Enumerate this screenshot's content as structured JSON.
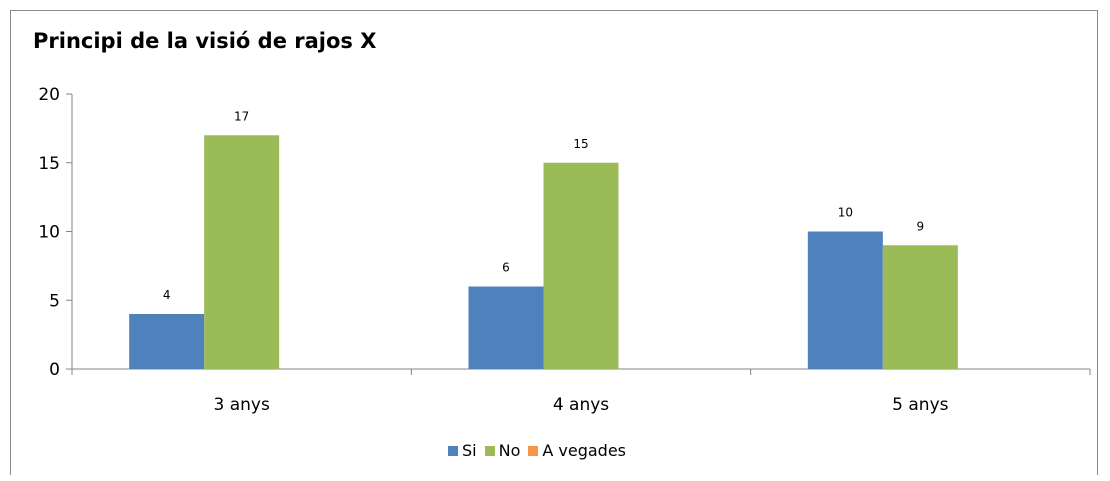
{
  "chart_data": {
    "type": "bar",
    "title": "Principi de la visió de rajos X",
    "categories": [
      "3 anys",
      "4 anys",
      "5 anys"
    ],
    "series": [
      {
        "name": "Si",
        "values": [
          4,
          6,
          10
        ],
        "color": "#4f81bd"
      },
      {
        "name": "No",
        "values": [
          17,
          15,
          9
        ],
        "color": "#9bbb59"
      },
      {
        "name": "A vegades",
        "values": [
          0,
          0,
          0
        ],
        "color": "#f79646"
      }
    ],
    "ylim": [
      0,
      20
    ],
    "yticks": [
      "0",
      "5",
      "10",
      "15",
      "20"
    ],
    "data_labels": true,
    "grid": false,
    "legend_position": "bottom"
  }
}
